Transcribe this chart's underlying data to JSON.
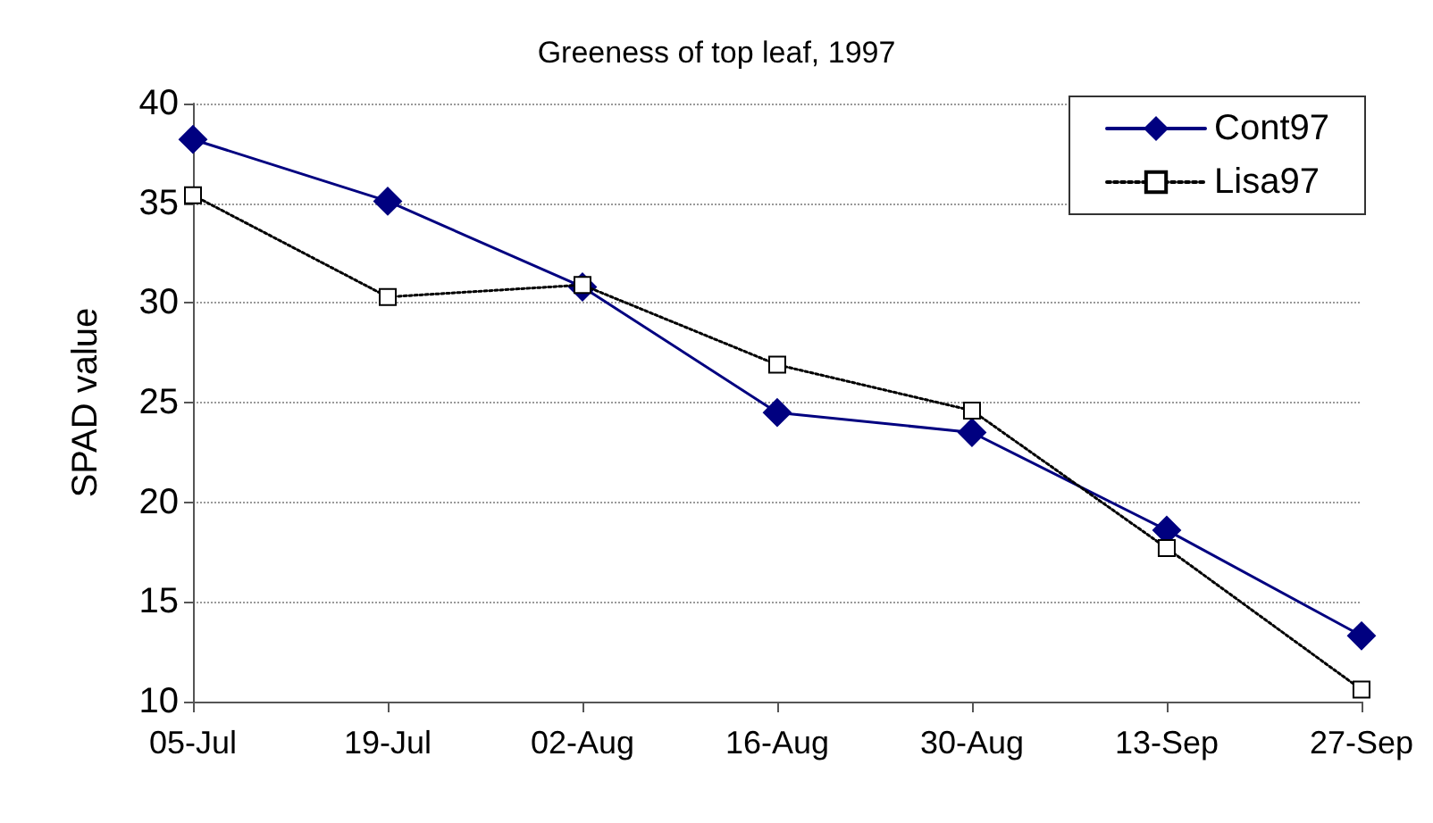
{
  "chart_data": {
    "type": "line",
    "title": "Greeness of top leaf, 1997",
    "ylabel": "SPAD value",
    "categories": [
      "05-Jul",
      "19-Jul",
      "02-Aug",
      "16-Aug",
      "30-Aug",
      "13-Sep",
      "27-Sep"
    ],
    "series": [
      {
        "name": "Cont97",
        "color": "#000080",
        "marker": "diamond",
        "line_style": "solid",
        "values": [
          38.2,
          35.1,
          30.8,
          24.5,
          23.5,
          18.6,
          13.3
        ]
      },
      {
        "name": "Lisa97",
        "color": "#000000",
        "marker": "square",
        "line_style": "dotted",
        "values": [
          35.4,
          30.3,
          30.9,
          26.9,
          24.6,
          17.7,
          10.6
        ]
      }
    ],
    "ylim": [
      10,
      40
    ],
    "yticks": [
      10,
      15,
      20,
      25,
      30,
      35,
      40
    ],
    "grid": "y",
    "legend": "top right"
  }
}
